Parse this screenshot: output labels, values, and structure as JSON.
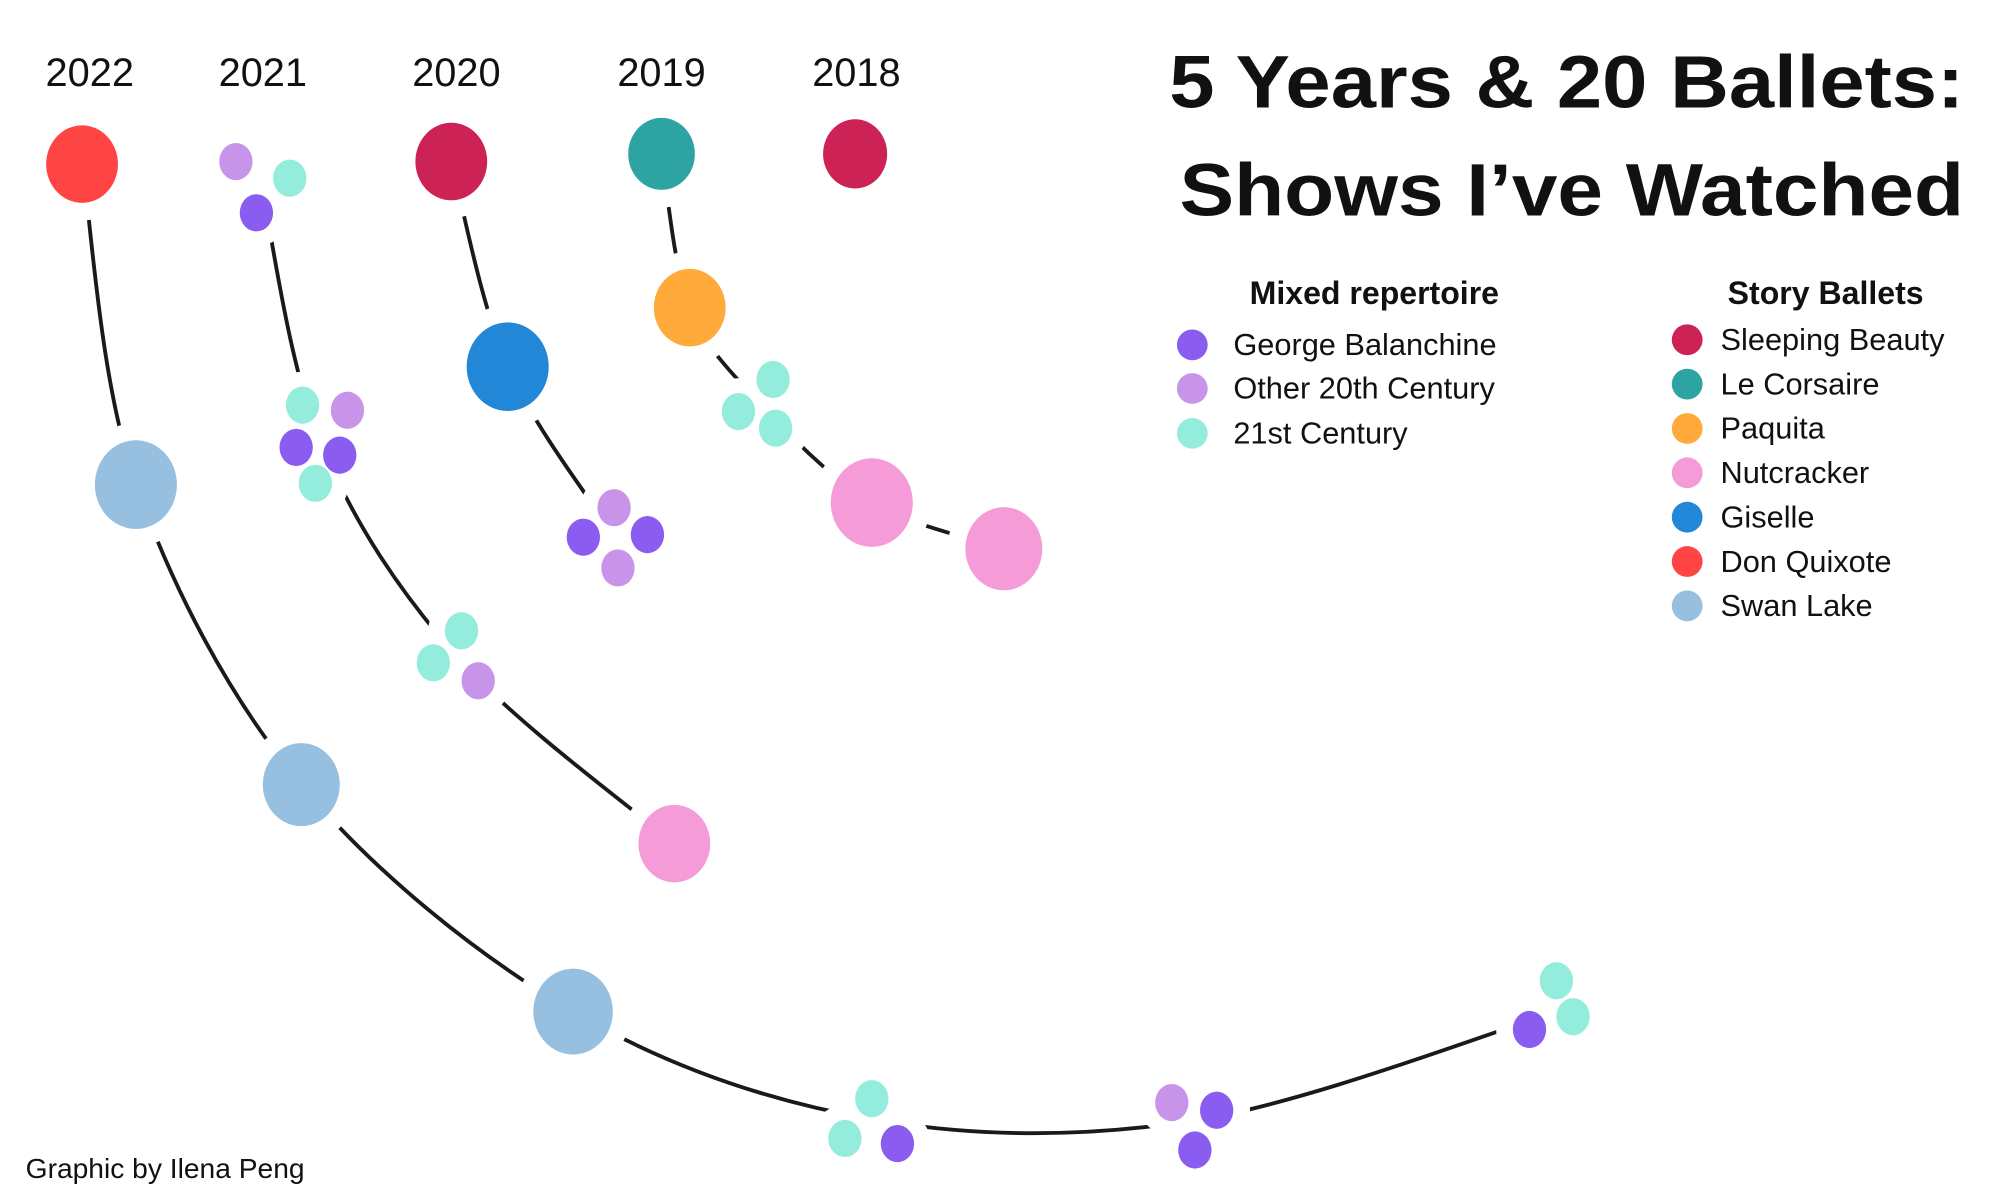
{
  "title_line1": "5 Years & 20 Ballets:",
  "title_line2": "Shows I’ve Watched",
  "credit": "Graphic by Ilena Peng",
  "legend": {
    "mixed": {
      "header": "Mixed repertoire",
      "items": [
        {
          "label": "George Balanchine",
          "color": "#8a5cf0"
        },
        {
          "label": "Other 20th Century",
          "color": "#c794ea"
        },
        {
          "label": "21st Century",
          "color": "#93ecdc"
        }
      ]
    },
    "story": {
      "header": "Story Ballets",
      "items": [
        {
          "label": "Sleeping Beauty",
          "color": "#cc2255"
        },
        {
          "label": "Le Corsaire",
          "color": "#2ea3a3"
        },
        {
          "label": "Paquita",
          "color": "#ffaa3b"
        },
        {
          "label": "Nutcracker",
          "color": "#f59bd8"
        },
        {
          "label": "Giselle",
          "color": "#2387d8"
        },
        {
          "label": "Don Quixote",
          "color": "#ff4444"
        },
        {
          "label": "Swan Lake",
          "color": "#96bfe0"
        }
      ]
    }
  },
  "chart_data": {
    "type": "timeline",
    "title": "5 Years & 20 Ballets: Shows I’ve Watched",
    "years": [
      {
        "year": "2022",
        "shows": [
          {
            "type": "story",
            "ballet": "Don Quixote"
          },
          {
            "type": "story",
            "ballet": "Swan Lake"
          },
          {
            "type": "story",
            "ballet": "Swan Lake"
          },
          {
            "type": "story",
            "ballet": "Swan Lake"
          },
          {
            "type": "mixed",
            "pieces": [
              "21st Century",
              "21st Century",
              "George Balanchine"
            ]
          },
          {
            "type": "mixed",
            "pieces": [
              "Other 20th Century",
              "George Balanchine",
              "George Balanchine"
            ]
          },
          {
            "type": "mixed",
            "pieces": [
              "21st Century",
              "21st Century",
              "George Balanchine"
            ]
          }
        ]
      },
      {
        "year": "2021",
        "shows": [
          {
            "type": "mixed",
            "pieces": [
              "Other 20th Century",
              "21st Century",
              "George Balanchine"
            ]
          },
          {
            "type": "mixed",
            "pieces": [
              "21st Century",
              "Other 20th Century",
              "George Balanchine",
              "George Balanchine",
              "21st Century"
            ]
          },
          {
            "type": "mixed",
            "pieces": [
              "21st Century",
              "21st Century",
              "Other 20th Century"
            ]
          },
          {
            "type": "story",
            "ballet": "Nutcracker"
          }
        ]
      },
      {
        "year": "2020",
        "shows": [
          {
            "type": "story",
            "ballet": "Sleeping Beauty"
          },
          {
            "type": "story",
            "ballet": "Giselle"
          },
          {
            "type": "mixed",
            "pieces": [
              "Other 20th Century",
              "George Balanchine",
              "George Balanchine",
              "Other 20th Century"
            ]
          }
        ]
      },
      {
        "year": "2019",
        "shows": [
          {
            "type": "story",
            "ballet": "Le Corsaire"
          },
          {
            "type": "story",
            "ballet": "Paquita"
          },
          {
            "type": "mixed",
            "pieces": [
              "21st Century",
              "21st Century",
              "21st Century"
            ]
          },
          {
            "type": "story",
            "ballet": "Nutcracker"
          },
          {
            "type": "story",
            "ballet": "Nutcracker"
          }
        ]
      },
      {
        "year": "2018",
        "shows": [
          {
            "type": "story",
            "ballet": "Sleeping Beauty"
          }
        ]
      }
    ]
  }
}
